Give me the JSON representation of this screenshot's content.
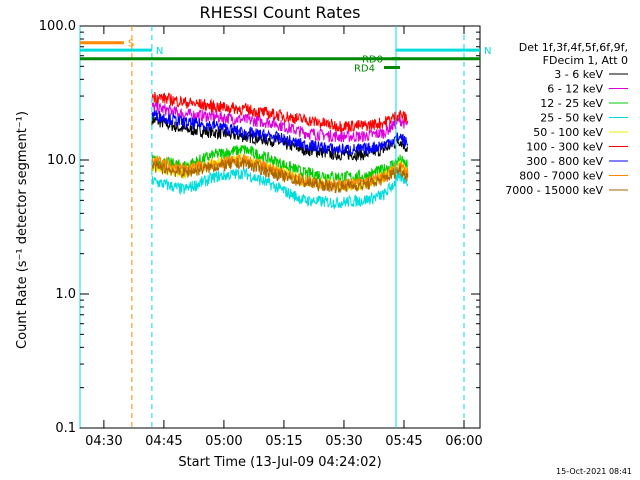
{
  "chart_data": {
    "type": "line",
    "title": "RHESSI Count Rates",
    "xlabel": "Start Time (13-Jul-09 04:24:02)",
    "ylabel": "Count Rate (s⁻¹ detector segment⁻¹)",
    "y_scale": "log",
    "ylim": [
      0.1,
      100
    ],
    "xlim": [
      "04:24:02",
      "06:04:00"
    ],
    "x_ticks": [
      "04:30",
      "04:45",
      "05:00",
      "05:15",
      "05:30",
      "05:45",
      "06:00"
    ],
    "y_ticks": [
      "0.1",
      "1.0",
      "10.0",
      "100.0"
    ],
    "legend_title": [
      "Det 1f,3f,4f,5f,6f,9f,",
      "FDecim 1, Att 0"
    ],
    "legend_position": "right",
    "footer": "15-Oct-2021 08:41",
    "x": [
      "04:42",
      "04:50",
      "04:58",
      "05:05",
      "05:12",
      "05:20",
      "05:28",
      "05:35",
      "05:40",
      "05:44",
      "05:46"
    ],
    "series": [
      {
        "name": "3 - 6 keV",
        "color": "#000000",
        "values": [
          20,
          17,
          16,
          15,
          14,
          12,
          11,
          11,
          12,
          14,
          12
        ]
      },
      {
        "name": "6 - 12 keV",
        "color": "#dd00dd",
        "values": [
          25,
          22,
          21,
          20,
          19,
          16,
          15,
          15,
          16,
          20,
          18
        ]
      },
      {
        "name": "12 - 25 keV",
        "color": "#00cc00",
        "values": [
          10,
          9,
          11,
          12,
          10,
          8,
          7.5,
          7.5,
          8.5,
          10,
          9
        ]
      },
      {
        "name": "25 - 50 keV",
        "color": "#00dddd",
        "values": [
          7,
          6,
          7.5,
          8,
          6.5,
          5,
          4.8,
          5,
          5.5,
          7.5,
          7
        ]
      },
      {
        "name": "50 - 100 keV",
        "color": "#eeee00",
        "values": [
          9,
          8,
          9.5,
          10,
          8.5,
          7,
          6.5,
          6.5,
          7.5,
          9,
          8
        ]
      },
      {
        "name": "100 - 300 keV",
        "color": "#ff0000",
        "values": [
          30,
          27,
          25,
          24,
          22,
          20,
          18,
          18,
          19,
          22,
          20
        ]
      },
      {
        "name": "300 - 800 keV",
        "color": "#0000ff",
        "values": [
          22,
          19,
          18,
          16,
          15,
          13,
          12,
          12,
          13,
          15,
          13
        ]
      },
      {
        "name": "800 - 7000 keV",
        "color": "#ff8800",
        "values": [
          10,
          8.5,
          9.5,
          10,
          8.5,
          7,
          6.5,
          6.8,
          7.5,
          9,
          8
        ]
      },
      {
        "name": "7000 - 15000 keV",
        "color": "#aa6600",
        "values": [
          9,
          8,
          9,
          9.5,
          8,
          6.8,
          6.3,
          6.5,
          7.2,
          8.5,
          7.5
        ]
      }
    ],
    "attenuator_bars": [
      {
        "label": "S",
        "color": "#ff8800",
        "start": "04:24:02",
        "end": "04:35",
        "level": 75
      },
      {
        "label": "N",
        "color": "#00dddd",
        "start": "04:24:02",
        "end": "04:42",
        "level": 66
      },
      {
        "label": "N",
        "color": "#00dddd",
        "start": "05:43",
        "end": "06:04:00",
        "level": 66
      },
      {
        "label": "",
        "color": "#008800",
        "start": "04:24:02",
        "end": "06:04:00",
        "level": 57
      },
      {
        "label": "RD4",
        "color": "#008800",
        "start": "05:40",
        "end": "05:44",
        "level": 49
      },
      {
        "label": "RD0",
        "color": "#008800",
        "start": "05:42",
        "end": "05:44",
        "level": 57
      }
    ],
    "vertical_lines": [
      {
        "time": "04:24:02",
        "color": "#00dddd",
        "style": "solid"
      },
      {
        "time": "04:37",
        "color": "#ff8800",
        "style": "dashed"
      },
      {
        "time": "04:42",
        "color": "#00dddd",
        "style": "dashed"
      },
      {
        "time": "05:43",
        "color": "#00dddd",
        "style": "solid"
      },
      {
        "time": "06:00",
        "color": "#00dddd",
        "style": "dashed"
      }
    ]
  }
}
